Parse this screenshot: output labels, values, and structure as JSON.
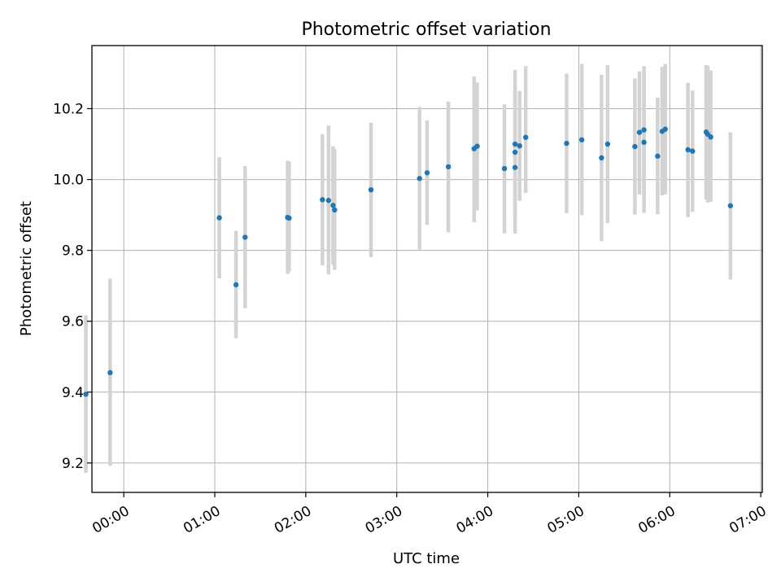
{
  "chart_data": {
    "type": "scatter",
    "title": "Photometric offset variation",
    "xlabel": "UTC time",
    "ylabel": "Photometric offset",
    "x_axis_type": "time",
    "xlim": [
      "-00:21",
      "07:01"
    ],
    "ylim": [
      9.117,
      10.378
    ],
    "x_ticks": [
      "00:00",
      "01:00",
      "02:00",
      "03:00",
      "04:00",
      "05:00",
      "06:00",
      "07:00"
    ],
    "y_ticks": [
      "9.2",
      "9.4",
      "9.6",
      "9.8",
      "10.0",
      "10.2"
    ],
    "grid": true,
    "marker_color": "#1f77b4",
    "errorbar_color": "#d3d3d3",
    "points": [
      {
        "t": "-00:25",
        "y": 9.394,
        "lo": 9.172,
        "hi": 9.617
      },
      {
        "t": "-00:09",
        "y": 9.455,
        "lo": 9.192,
        "hi": 9.72
      },
      {
        "t": "01:03",
        "y": 9.892,
        "lo": 9.721,
        "hi": 10.063
      },
      {
        "t": "01:14",
        "y": 9.703,
        "lo": 9.552,
        "hi": 9.855
      },
      {
        "t": "01:20",
        "y": 9.837,
        "lo": 9.637,
        "hi": 10.038
      },
      {
        "t": "01:48",
        "y": 9.893,
        "lo": 9.734,
        "hi": 10.053
      },
      {
        "t": "01:49",
        "y": 9.891,
        "lo": 9.74,
        "hi": 10.051
      },
      {
        "t": "02:11",
        "y": 9.943,
        "lo": 9.758,
        "hi": 10.128
      },
      {
        "t": "02:15",
        "y": 9.941,
        "lo": 9.732,
        "hi": 10.152
      },
      {
        "t": "02:18",
        "y": 9.927,
        "lo": 9.76,
        "hi": 10.094
      },
      {
        "t": "02:19",
        "y": 9.914,
        "lo": 9.745,
        "hi": 10.086
      },
      {
        "t": "02:43",
        "y": 9.971,
        "lo": 9.781,
        "hi": 10.16
      },
      {
        "t": "03:15",
        "y": 10.003,
        "lo": 9.802,
        "hi": 10.205
      },
      {
        "t": "03:20",
        "y": 10.019,
        "lo": 9.872,
        "hi": 10.167
      },
      {
        "t": "03:34",
        "y": 10.036,
        "lo": 9.851,
        "hi": 10.22
      },
      {
        "t": "03:51",
        "y": 10.087,
        "lo": 9.88,
        "hi": 10.291
      },
      {
        "t": "03:53",
        "y": 10.094,
        "lo": 9.913,
        "hi": 10.274
      },
      {
        "t": "04:11",
        "y": 10.031,
        "lo": 9.848,
        "hi": 10.212
      },
      {
        "t": "04:18",
        "y": 10.034,
        "lo": 9.847,
        "hi": 10.255
      },
      {
        "t": "04:18",
        "y": 10.077,
        "lo": 9.892,
        "hi": 10.262
      },
      {
        "t": "04:18",
        "y": 10.1,
        "lo": 9.889,
        "hi": 10.309
      },
      {
        "t": "04:21",
        "y": 10.095,
        "lo": 9.94,
        "hi": 10.25
      },
      {
        "t": "04:25",
        "y": 10.119,
        "lo": 9.962,
        "hi": 10.32
      },
      {
        "t": "04:52",
        "y": 10.102,
        "lo": 9.905,
        "hi": 10.299
      },
      {
        "t": "05:02",
        "y": 10.112,
        "lo": 9.899,
        "hi": 10.326
      },
      {
        "t": "05:15",
        "y": 10.061,
        "lo": 9.826,
        "hi": 10.296
      },
      {
        "t": "05:19",
        "y": 10.1,
        "lo": 9.877,
        "hi": 10.323
      },
      {
        "t": "05:37",
        "y": 10.093,
        "lo": 9.901,
        "hi": 10.285
      },
      {
        "t": "05:40",
        "y": 10.133,
        "lo": 9.958,
        "hi": 10.305
      },
      {
        "t": "05:43",
        "y": 10.14,
        "lo": 9.96,
        "hi": 10.32
      },
      {
        "t": "05:43",
        "y": 10.105,
        "lo": 9.906,
        "hi": 10.304
      },
      {
        "t": "05:52",
        "y": 10.066,
        "lo": 9.902,
        "hi": 10.231
      },
      {
        "t": "05:55",
        "y": 10.136,
        "lo": 9.955,
        "hi": 10.318
      },
      {
        "t": "05:57",
        "y": 10.142,
        "lo": 9.958,
        "hi": 10.326
      },
      {
        "t": "06:12",
        "y": 10.084,
        "lo": 9.894,
        "hi": 10.273
      },
      {
        "t": "06:15",
        "y": 10.08,
        "lo": 9.909,
        "hi": 10.251
      },
      {
        "t": "06:24",
        "y": 10.134,
        "lo": 9.944,
        "hi": 10.323
      },
      {
        "t": "06:25",
        "y": 10.128,
        "lo": 9.935,
        "hi": 10.321
      },
      {
        "t": "06:27",
        "y": 10.12,
        "lo": 9.937,
        "hi": 10.308
      },
      {
        "t": "06:40",
        "y": 9.926,
        "lo": 9.718,
        "hi": 10.133
      }
    ]
  }
}
